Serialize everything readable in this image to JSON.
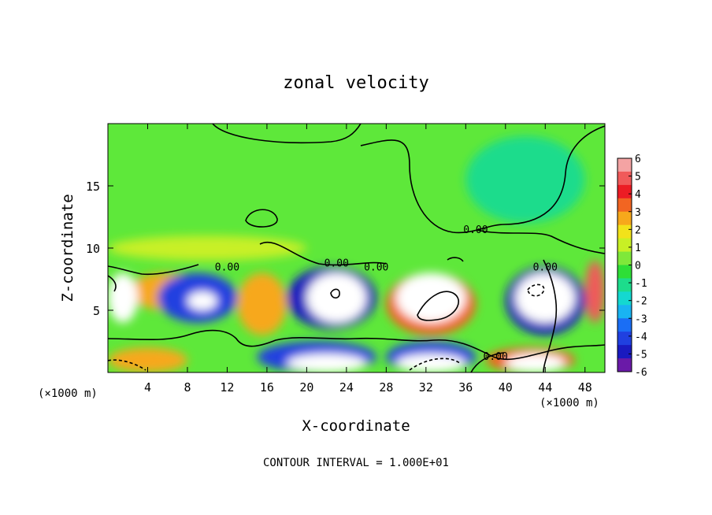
{
  "chart_data": {
    "type": "heatmap",
    "title": "zonal velocity",
    "xlabel": "X-coordinate",
    "ylabel": "Z-coordinate",
    "x_unit": "(×1000 m)",
    "x_unit_right": "(×1000 m)",
    "footer": "CONTOUR INTERVAL = 1.000E+01",
    "xlim": [
      0,
      50
    ],
    "ylim": [
      0,
      20
    ],
    "x_ticks": [
      4,
      8,
      12,
      16,
      20,
      24,
      28,
      32,
      36,
      40,
      44,
      48
    ],
    "y_ticks": [
      5,
      10,
      15
    ],
    "colorbar": {
      "ticks": [
        6,
        5,
        4,
        3,
        2,
        1,
        0,
        -1,
        -2,
        -3,
        -4,
        -5,
        -6
      ],
      "colors": [
        "#f4a3a3",
        "#f05a5a",
        "#ec1c24",
        "#f26522",
        "#f7a81b",
        "#f2e21a",
        "#c8f025",
        "#7fe83a",
        "#2ede36",
        "#1ddc8c",
        "#14d8d0",
        "#19b4f2",
        "#1a6ef5",
        "#2040e0",
        "#1a1ac0",
        "#6a1aa8"
      ]
    },
    "contour_labels": [
      "0.00",
      "0.00",
      "0.00",
      "0.00",
      "0.00",
      "0.00"
    ],
    "background_color": "#5ee83a",
    "cells": [
      {
        "x": [
          2,
          10
        ],
        "z": [
          5,
          8
        ],
        "value": 3
      },
      {
        "x": [
          5,
          13
        ],
        "z": [
          4,
          8
        ],
        "value": -4
      },
      {
        "x": [
          8,
          11
        ],
        "z": [
          5,
          6.5
        ],
        "value": 6
      },
      {
        "x": [
          13,
          18
        ],
        "z": [
          3,
          8
        ],
        "value": 3
      },
      {
        "x": [
          18,
          27
        ],
        "z": [
          3.5,
          8.5
        ],
        "value": -5
      },
      {
        "x": [
          20,
          26
        ],
        "z": [
          4,
          8
        ],
        "value": 6
      },
      {
        "x": [
          28,
          37
        ],
        "z": [
          3,
          8
        ],
        "value": 4
      },
      {
        "x": [
          29,
          36
        ],
        "z": [
          4,
          8
        ],
        "value": 6
      },
      {
        "x": [
          40,
          48
        ],
        "z": [
          3,
          8.5
        ],
        "value": -5
      },
      {
        "x": [
          41,
          47
        ],
        "z": [
          4,
          8
        ],
        "value": 6
      },
      {
        "x": [
          0,
          3
        ],
        "z": [
          4,
          8
        ],
        "value": 6
      },
      {
        "x": [
          48,
          50
        ],
        "z": [
          4,
          9
        ],
        "value": 5
      },
      {
        "x": [
          15,
          27
        ],
        "z": [
          0,
          2.5
        ],
        "value": -4
      },
      {
        "x": [
          18,
          26
        ],
        "z": [
          0,
          1.5
        ],
        "value": 6
      },
      {
        "x": [
          28,
          37
        ],
        "z": [
          0,
          2.5
        ],
        "value": -4
      },
      {
        "x": [
          29,
          36
        ],
        "z": [
          0,
          1.5
        ],
        "value": 6
      },
      {
        "x": [
          38,
          47
        ],
        "z": [
          0,
          2
        ],
        "value": 4
      },
      {
        "x": [
          40,
          46
        ],
        "z": [
          0,
          1.5
        ],
        "value": 6
      },
      {
        "x": [
          0,
          8
        ],
        "z": [
          0,
          2
        ],
        "value": 3
      },
      {
        "x": [
          36,
          48
        ],
        "z": [
          12,
          19
        ],
        "value": -1
      },
      {
        "x": [
          0,
          20
        ],
        "z": [
          9,
          11
        ],
        "value": 1
      }
    ]
  }
}
